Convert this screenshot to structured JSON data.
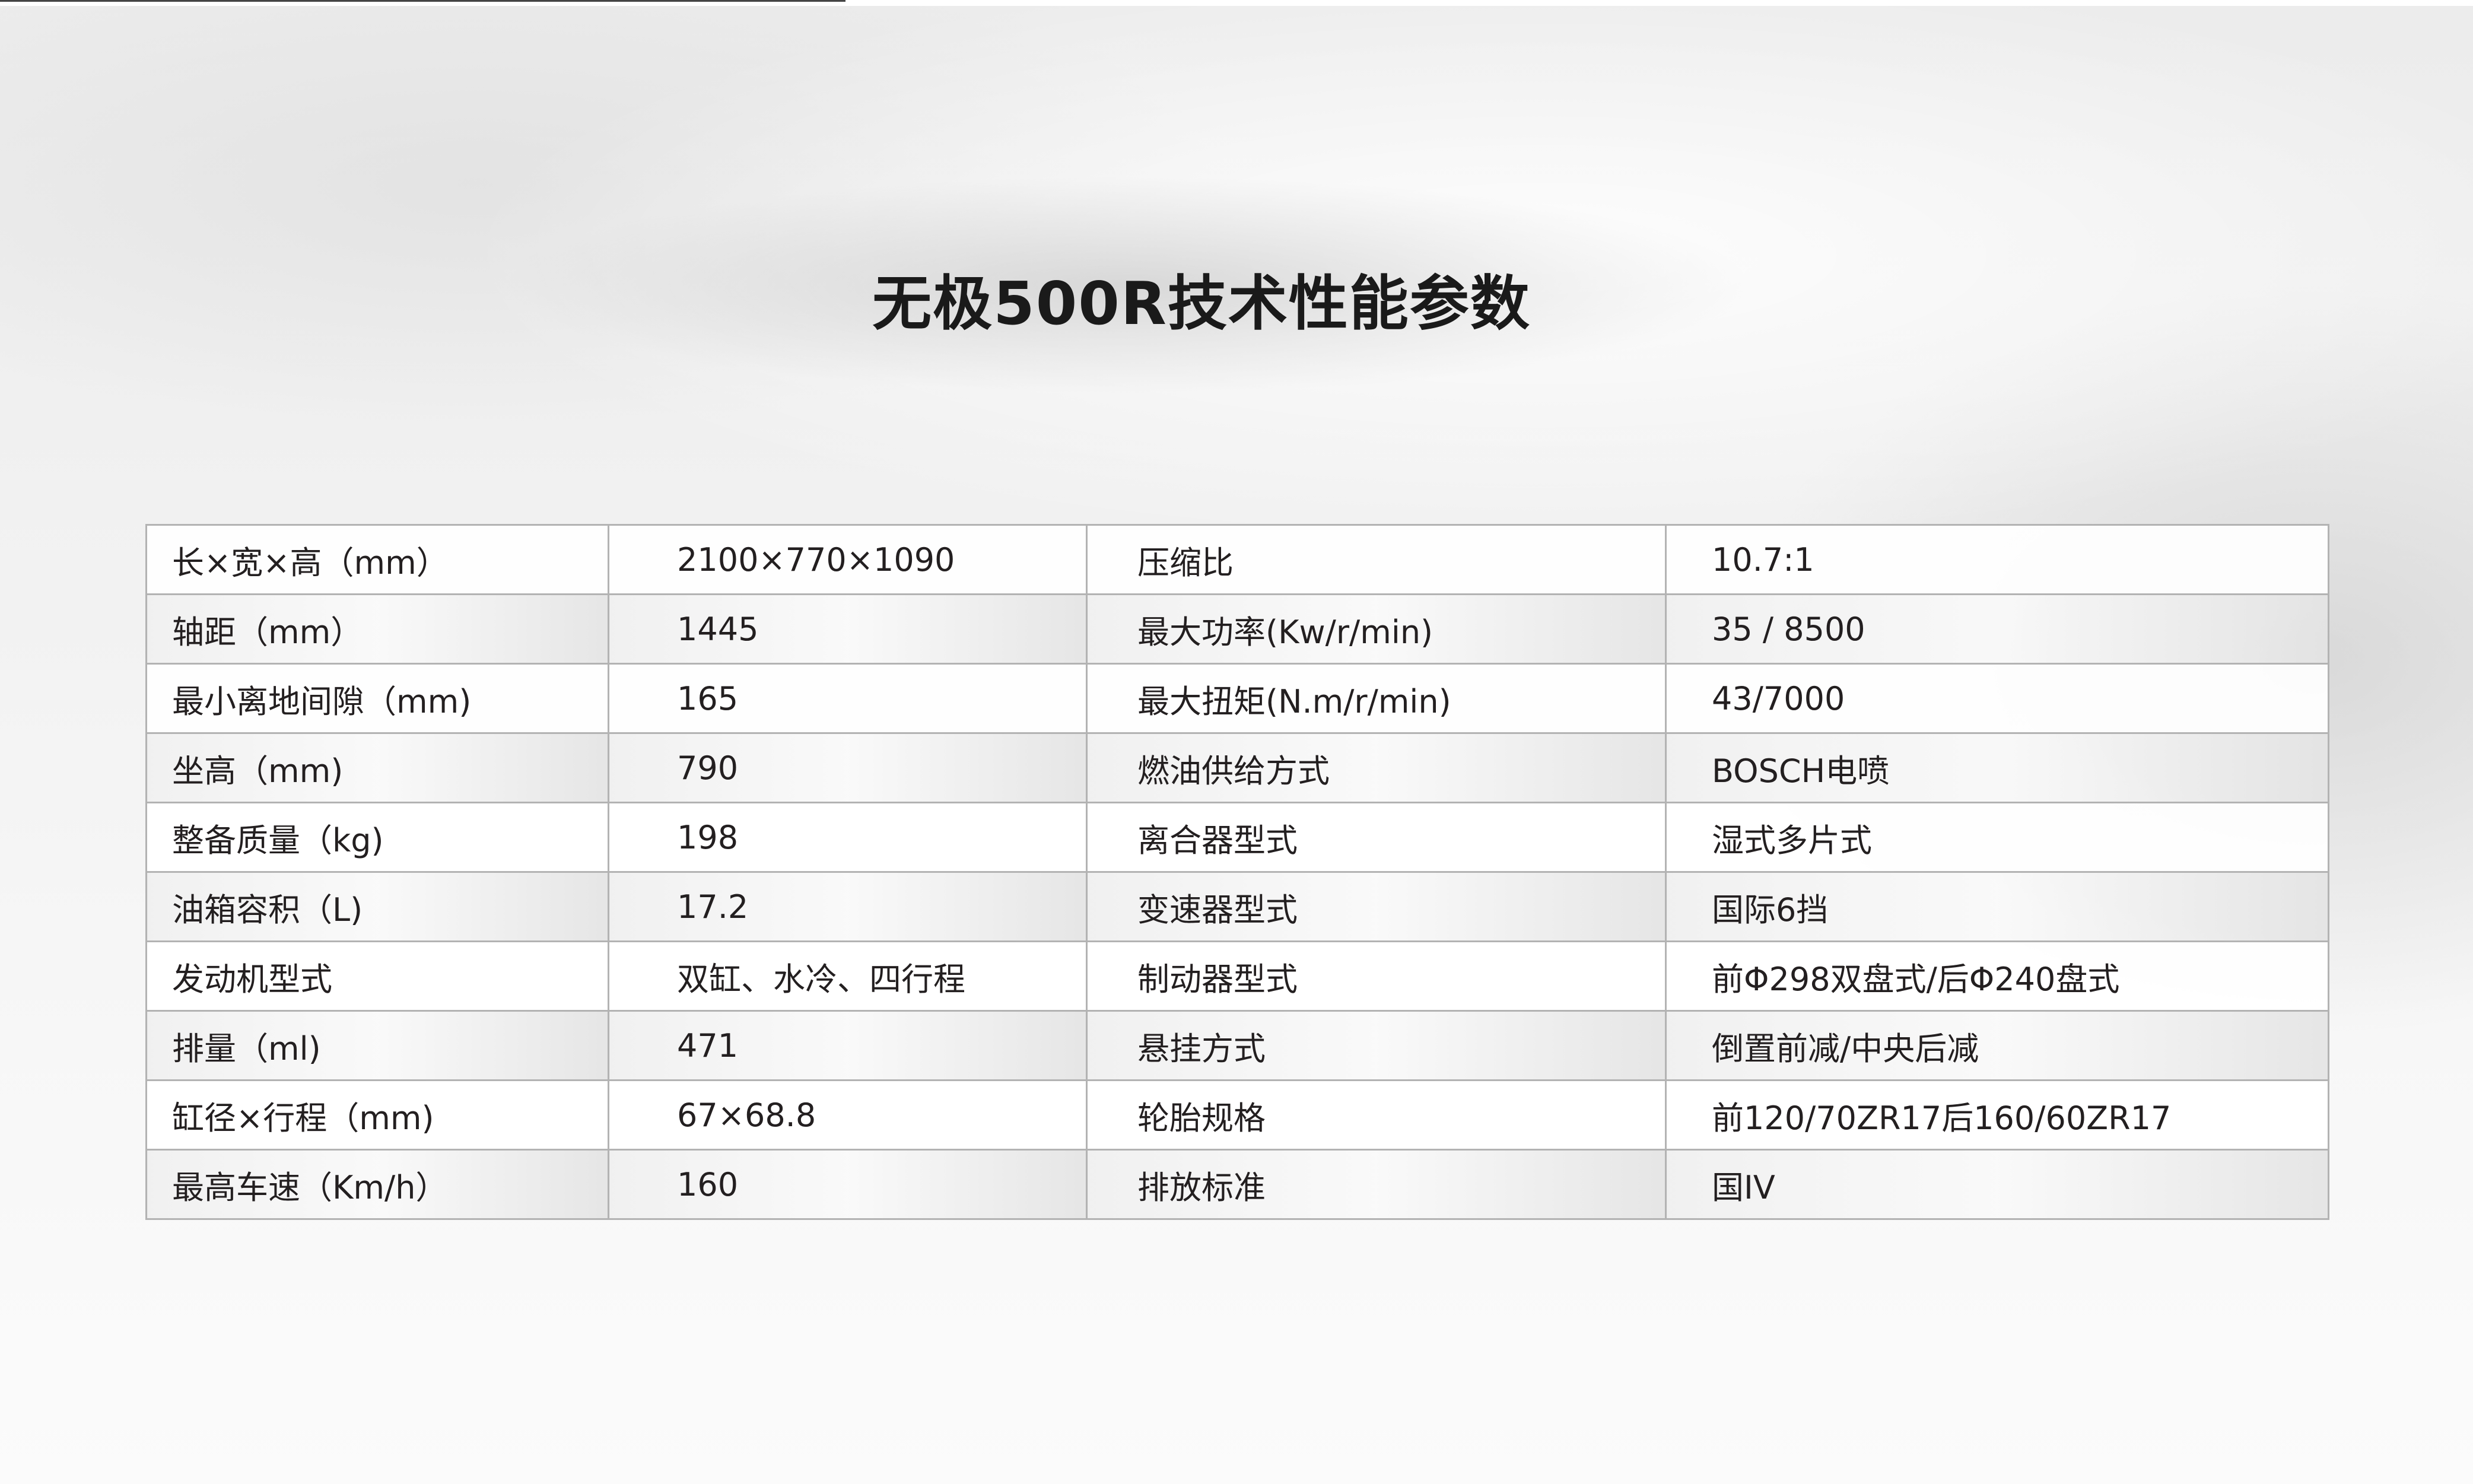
{
  "title": "无极500R技术性能参数",
  "specs": [
    {
      "label1": "长×宽×高（mm）",
      "value1": "2100×770×1090",
      "label2": "压缩比",
      "value2": "10.7:1"
    },
    {
      "label1": "轴距（mm）",
      "value1": "1445",
      "label2": "最大功率(Kw/r/min)",
      "value2": "35 / 8500"
    },
    {
      "label1": "最小离地间隙（mm)",
      "value1": "165",
      "label2": "最大扭矩(N.m/r/min)",
      "value2": "43/7000"
    },
    {
      "label1": "坐高（mm)",
      "value1": "790",
      "label2": "燃油供给方式",
      "value2": "BOSCH电喷"
    },
    {
      "label1": "整备质量（kg)",
      "value1": "198",
      "label2": "离合器型式",
      "value2": "湿式多片式"
    },
    {
      "label1": "油箱容积（L)",
      "value1": "17.2",
      "label2": "变速器型式",
      "value2": "国际6挡"
    },
    {
      "label1": "发动机型式",
      "value1": "双缸、水冷、四行程",
      "label2": "制动器型式",
      "value2": "前Φ298双盘式/后Φ240盘式"
    },
    {
      "label1": "排量（ml)",
      "value1": "471",
      "label2": "悬挂方式",
      "value2": "倒置前减/中央后减"
    },
    {
      "label1": "缸径×行程（mm)",
      "value1": "67×68.8",
      "label2": "轮胎规格",
      "value2": "前120/70ZR17后160/60ZR17"
    },
    {
      "label1": "最高车速（Km/h）",
      "value1": "160",
      "label2": "排放标准",
      "value2": "国IV"
    }
  ]
}
